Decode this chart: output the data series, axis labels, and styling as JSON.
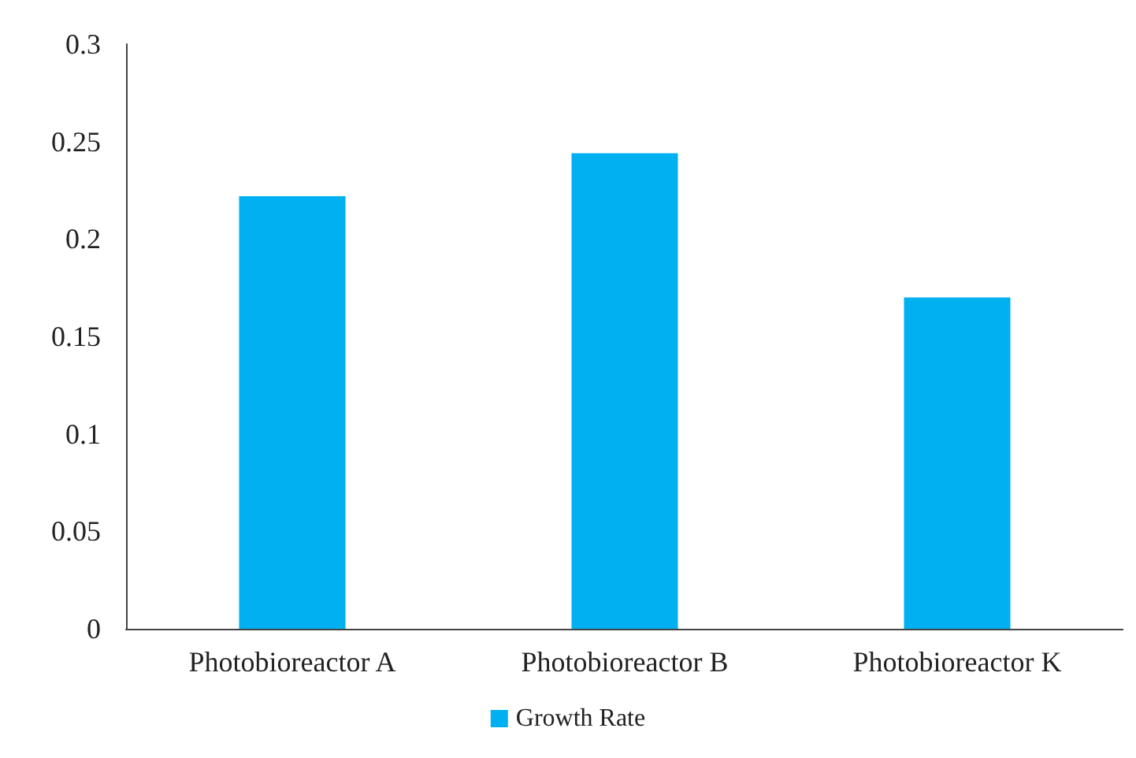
{
  "chart_data": {
    "type": "bar",
    "categories": [
      "Photobioreactor A",
      "Photobioreactor B",
      "Photobioreactor K"
    ],
    "series": [
      {
        "name": "Growth Rate",
        "color": "#00b0f0",
        "values": [
          0.222,
          0.244,
          0.17
        ]
      }
    ],
    "ylim": [
      0,
      0.3
    ],
    "yticks": [
      0,
      0.05,
      0.1,
      0.15,
      0.2,
      0.25,
      0.3
    ],
    "grid": false,
    "legend": "bottom"
  }
}
